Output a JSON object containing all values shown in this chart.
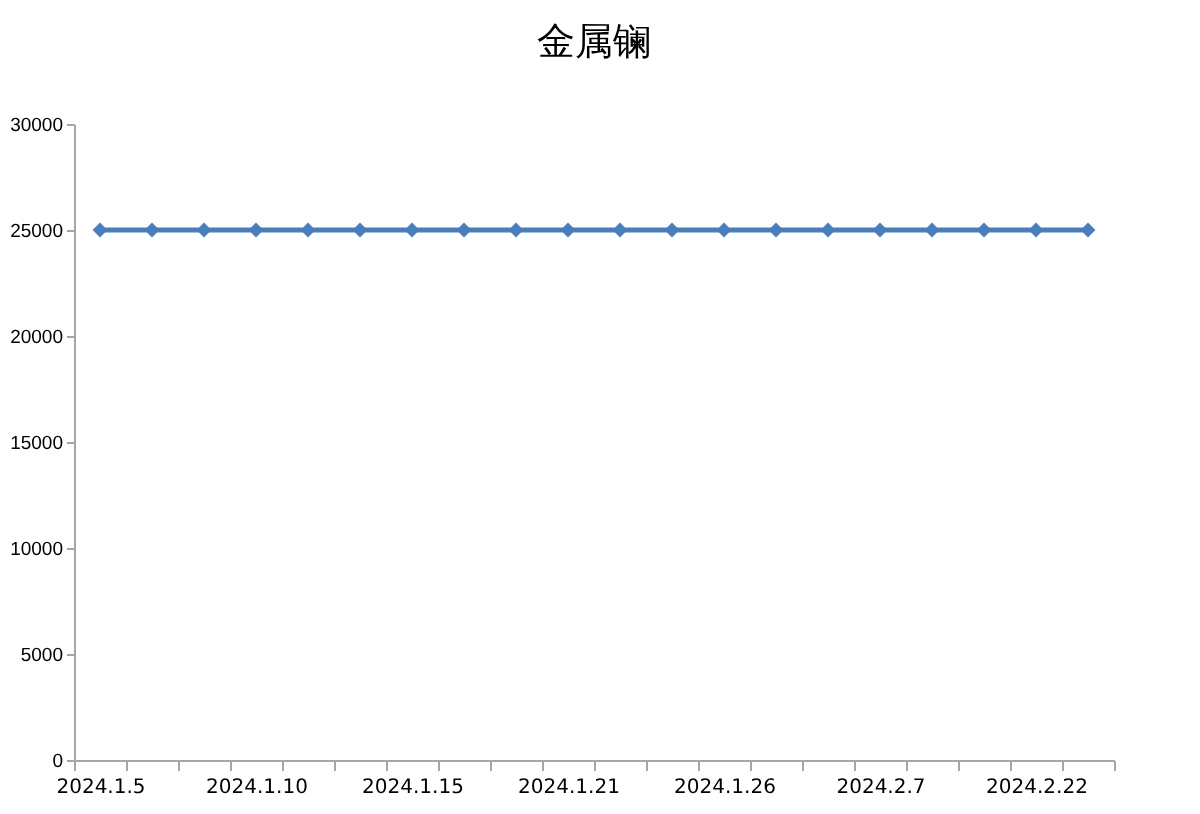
{
  "chart_data": {
    "type": "line",
    "title": "金属镧",
    "categories": [
      "2024.1.5",
      null,
      null,
      "2024.1.10",
      null,
      null,
      "2024.1.15",
      null,
      null,
      "2024.1.21",
      null,
      null,
      "2024.1.26",
      null,
      null,
      "2024.2.7",
      null,
      null,
      "2024.2.22",
      null
    ],
    "series": [
      {
        "color": "#4a7ebb",
        "values": [
          25000,
          25000,
          25000,
          25000,
          25000,
          25000,
          25000,
          25000,
          25000,
          25000,
          25000,
          25000,
          25000,
          25000,
          25000,
          25000,
          25000,
          25000,
          25000,
          25000
        ]
      }
    ],
    "ylim": [
      0,
      30000
    ],
    "yticks": [
      0,
      5000,
      10000,
      15000,
      20000,
      25000,
      30000
    ],
    "grid": false,
    "legend": false,
    "marker": "diamond",
    "line_style": "solid"
  }
}
